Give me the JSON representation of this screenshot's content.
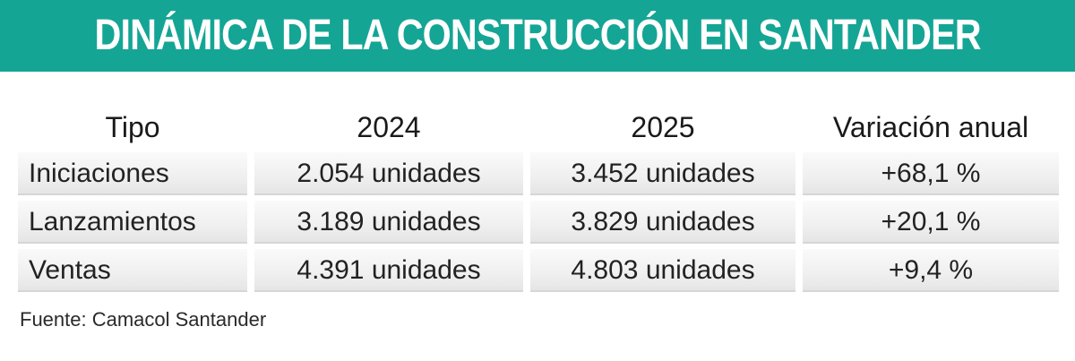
{
  "banner": {
    "title": "DINÁMICA DE LA CONSTRUCCIÓN EN SANTANDER",
    "background_color": "#14a595",
    "text_color": "#ffffff"
  },
  "chart_data": {
    "type": "table",
    "title": "DINÁMICA DE LA CONSTRUCCIÓN EN SANTANDER",
    "columns": [
      "Tipo",
      "2024",
      "2025",
      "Variación anual"
    ],
    "rows": [
      {
        "tipo": "Iniciaciones",
        "y2024": "2.054 unidades",
        "y2025": "3.452 unidades",
        "variacion": "+68,1 %"
      },
      {
        "tipo": "Lanzamientos",
        "y2024": "3.189 unidades",
        "y2025": "3.829 unidades",
        "variacion": "+20,1 %"
      },
      {
        "tipo": "Ventas",
        "y2024": "4.391 unidades",
        "y2025": "4.803 unidades",
        "variacion": "+9,4 %"
      }
    ],
    "source": "Fuente: Camacol Santander"
  }
}
